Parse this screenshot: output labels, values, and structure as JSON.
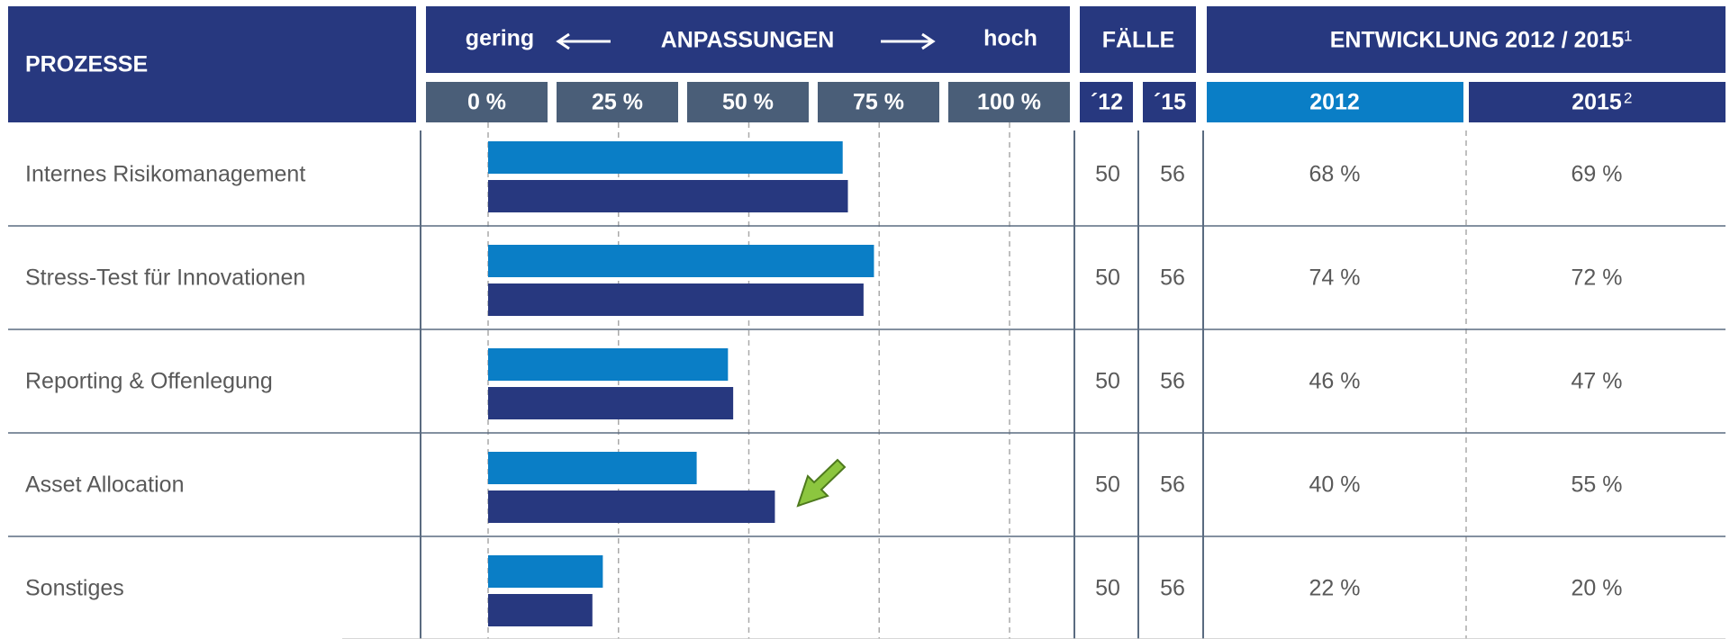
{
  "chart_data": {
    "type": "bar",
    "header": {
      "processes": "PROZESSE",
      "low": "gering",
      "adjustments": "ANPASSUNGEN",
      "high": "hoch",
      "cases": "FÄLLE",
      "development": "ENTWICKLUNG 2012 / 2015",
      "development_note": "1"
    },
    "categories": [
      "Internes Risikomanagement",
      "Stress-Test für Innovationen",
      "Reporting & Offenlegung",
      "Asset Allocation",
      "Sonstiges"
    ],
    "series": [
      {
        "name": "2012",
        "color": "#0a7ec6",
        "values": [
          68,
          74,
          46,
          40,
          22
        ],
        "value_labels": [
          "68 %",
          "74 %",
          "46 %",
          "40 %",
          "22 %"
        ]
      },
      {
        "name": "2015",
        "note": "2",
        "color": "#27387f",
        "values": [
          69,
          72,
          47,
          55,
          20
        ],
        "value_labels": [
          "69 %",
          "72 %",
          "47 %",
          "55 %",
          "20 %"
        ]
      }
    ],
    "cases": {
      "labels": [
        "´12",
        "´15"
      ],
      "values": [
        [
          50,
          50,
          50,
          50,
          50
        ],
        [
          56,
          56,
          56,
          56,
          56
        ]
      ]
    },
    "xlim": [
      0,
      100
    ],
    "xticks": [
      {
        "value": 0,
        "label": "0 %"
      },
      {
        "value": 25,
        "label": "25 %"
      },
      {
        "value": 50,
        "label": "50 %"
      },
      {
        "value": 75,
        "label": "75 %"
      },
      {
        "value": 100,
        "label": "100 %"
      }
    ],
    "grid": true
  }
}
